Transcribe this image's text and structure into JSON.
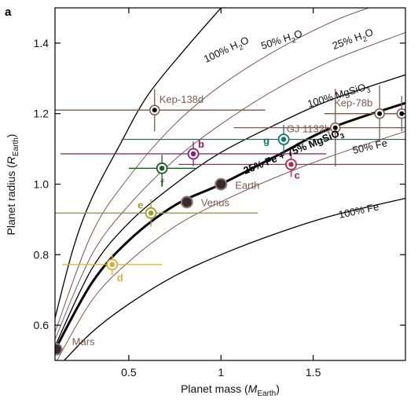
{
  "panel_letter": "a",
  "colors": {
    "water_curve": "#7a5a50",
    "mgsio3_curve": "#000000",
    "iron_curve": "#7a5a50",
    "earth_like": "#000000",
    "solar_system": "#3a2a2a",
    "exoplanet_brown": "#7a5a50",
    "trappist_b": "#8a1c6a",
    "trappist_c": "#b0284a",
    "trappist_d": "#d4b03a",
    "trappist_e": "#a09a2a",
    "trappist_f": "#1c5a2a",
    "trappist_g": "#0a7a6a"
  },
  "chart_data": {
    "type": "scatter",
    "xlabel": "Planet mass (M_Earth)",
    "xlabel_parts": {
      "main": "Planet mass (",
      "italic": "M",
      "sub": "Earth",
      "close": ")"
    },
    "ylabel_parts": {
      "main": "Planet radius (",
      "italic": "R",
      "sub": "Earth",
      "close": ")"
    },
    "xlim": [
      0.1,
      2.0
    ],
    "ylim": [
      0.5,
      1.5
    ],
    "x_ticks": [
      0.5,
      1.0,
      1.5
    ],
    "x_tick_labels": [
      "0.5",
      "1",
      "1.5"
    ],
    "y_ticks": [
      0.6,
      0.8,
      1.0,
      1.2,
      1.4
    ],
    "y_tick_labels": [
      "0.6",
      "0.8",
      "1.0",
      "1.2",
      "1.4"
    ],
    "grid": false,
    "curves": [
      {
        "label_parts": {
          "main": "100% H",
          "sub": "2",
          "rest": "O"
        },
        "color_key": "mgsio3_curve",
        "width": 1.3,
        "points": [
          [
            0.1,
            0.62
          ],
          [
            0.2,
            0.82
          ],
          [
            0.3,
            0.96
          ],
          [
            0.45,
            1.11
          ],
          [
            0.6,
            1.25
          ],
          [
            0.8,
            1.38
          ],
          [
            1.0,
            1.5
          ]
        ]
      },
      {
        "label_parts": {
          "main": "50% H",
          "sub": "2",
          "rest": "O"
        },
        "color_key": "water_curve",
        "width": 1.0,
        "points": [
          [
            0.1,
            0.58
          ],
          [
            0.3,
            0.86
          ],
          [
            0.5,
            1.02
          ],
          [
            0.75,
            1.17
          ],
          [
            1.0,
            1.28
          ],
          [
            1.3,
            1.38
          ],
          [
            1.6,
            1.46
          ],
          [
            1.8,
            1.5
          ]
        ]
      },
      {
        "label_parts": {
          "main": "25% H",
          "sub": "2",
          "rest": "O"
        },
        "color_key": "water_curve",
        "width": 1.0,
        "points": [
          [
            0.1,
            0.56
          ],
          [
            0.3,
            0.8
          ],
          [
            0.5,
            0.94
          ],
          [
            0.75,
            1.07
          ],
          [
            1.0,
            1.17
          ],
          [
            1.3,
            1.27
          ],
          [
            1.6,
            1.35
          ],
          [
            2.0,
            1.43
          ]
        ]
      },
      {
        "label_parts": {
          "main": "100% MgSiO",
          "sub": "3",
          "rest": ""
        },
        "color_key": "mgsio3_curve",
        "width": 1.3,
        "points": [
          [
            0.1,
            0.54
          ],
          [
            0.3,
            0.76
          ],
          [
            0.5,
            0.89
          ],
          [
            0.75,
            1.0
          ],
          [
            1.0,
            1.09
          ],
          [
            1.3,
            1.17
          ],
          [
            1.6,
            1.24
          ],
          [
            2.0,
            1.31
          ]
        ]
      },
      {
        "label_parts": {
          "main": "25% Fe + 75% MgSiO",
          "sub": "3",
          "rest": ""
        },
        "color_key": "earth_like",
        "width": 3.0,
        "points": [
          [
            0.1,
            0.53
          ],
          [
            0.3,
            0.72
          ],
          [
            0.5,
            0.84
          ],
          [
            0.75,
            0.94
          ],
          [
            1.0,
            1.0
          ],
          [
            1.3,
            1.08
          ],
          [
            1.6,
            1.16
          ],
          [
            2.0,
            1.23
          ]
        ]
      },
      {
        "label_parts": {
          "main": "50% Fe",
          "sub": "",
          "rest": ""
        },
        "color_key": "iron_curve",
        "width": 1.0,
        "points": [
          [
            0.1,
            0.49
          ],
          [
            0.3,
            0.67
          ],
          [
            0.5,
            0.78
          ],
          [
            0.75,
            0.88
          ],
          [
            1.0,
            0.95
          ],
          [
            1.3,
            1.02
          ],
          [
            1.6,
            1.08
          ],
          [
            2.0,
            1.15
          ]
        ]
      },
      {
        "label_parts": {
          "main": "100% Fe",
          "sub": "",
          "rest": ""
        },
        "color_key": "mgsio3_curve",
        "width": 1.3,
        "points": [
          [
            0.15,
            0.5
          ],
          [
            0.3,
            0.58
          ],
          [
            0.5,
            0.66
          ],
          [
            0.75,
            0.74
          ],
          [
            1.0,
            0.8
          ],
          [
            1.3,
            0.86
          ],
          [
            1.6,
            0.91
          ],
          [
            2.0,
            0.96
          ]
        ]
      }
    ],
    "series": [
      {
        "name": "Mars",
        "x": 0.107,
        "y": 0.532,
        "color_key": "solar_system",
        "style": "solar"
      },
      {
        "name": "Venus",
        "x": 0.815,
        "y": 0.949,
        "color_key": "solar_system",
        "style": "solar"
      },
      {
        "name": "Earth",
        "x": 1.0,
        "y": 1.0,
        "color_key": "solar_system",
        "style": "solar"
      },
      {
        "name": "Kep-138d",
        "x": 0.64,
        "y": 1.21,
        "xerr": 0.6,
        "yerr": 0.06,
        "color_key": "exoplanet_brown",
        "style": "exo"
      },
      {
        "name": "Kep-78b",
        "x": 1.86,
        "y": 1.2,
        "xerr": 0.3,
        "yerr": 0.08,
        "color_key": "exoplanet_brown",
        "style": "exo"
      },
      {
        "name": "GJ 1132b",
        "x": 1.62,
        "y": 1.16,
        "xerr": 0.55,
        "yerr": 0.11,
        "color_key": "exoplanet_brown",
        "style": "exo"
      },
      {
        "name": "",
        "x": 1.98,
        "y": 1.2,
        "xerr": 0.1,
        "yerr": 0.05,
        "color_key": "exoplanet_brown",
        "style": "exo"
      },
      {
        "name": "b",
        "x": 0.85,
        "y": 1.086,
        "xerr": 0.72,
        "yerr": 0.035,
        "color_key": "trappist_b",
        "style": "trappist"
      },
      {
        "name": "c",
        "x": 1.38,
        "y": 1.056,
        "xerr": 0.61,
        "yerr": 0.035,
        "color_key": "trappist_c",
        "style": "trappist"
      },
      {
        "name": "d",
        "x": 0.41,
        "y": 0.772,
        "xerr": 0.27,
        "yerr": 0.03,
        "color_key": "trappist_d",
        "style": "trappist"
      },
      {
        "name": "e",
        "x": 0.62,
        "y": 0.918,
        "xerr": 0.58,
        "yerr": 0.039,
        "color_key": "trappist_e",
        "style": "trappist"
      },
      {
        "name": "f",
        "x": 0.68,
        "y": 1.045,
        "xerr": 0.18,
        "yerr": 0.038,
        "color_key": "trappist_f",
        "style": "trappist"
      },
      {
        "name": "g",
        "x": 1.34,
        "y": 1.127,
        "xerr": 0.88,
        "yerr": 0.041,
        "color_key": "trappist_g",
        "style": "trappist"
      }
    ]
  }
}
